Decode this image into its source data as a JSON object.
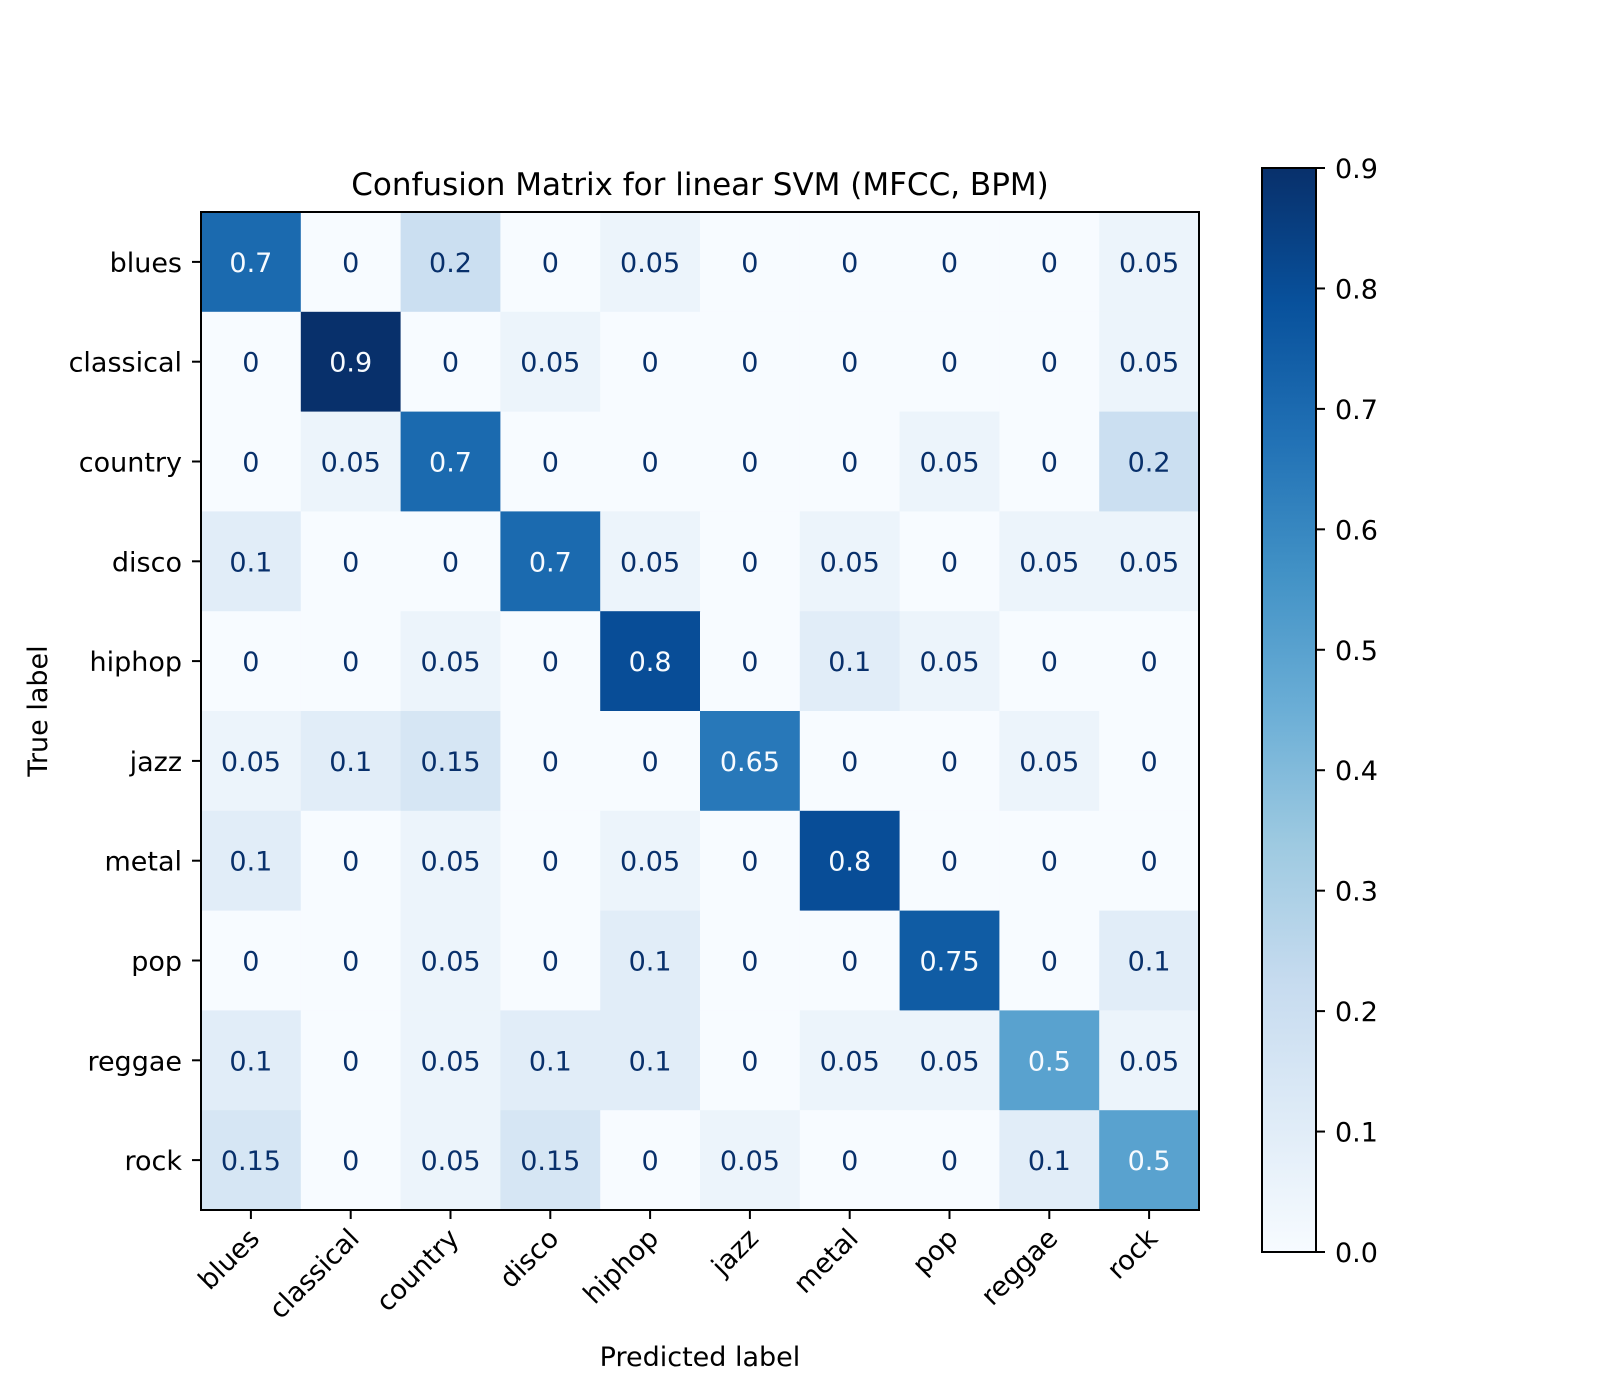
{
  "chart_data": {
    "type": "heatmap",
    "title": "Confusion Matrix for linear SVM (MFCC, BPM)",
    "xlabel": "Predicted label",
    "ylabel": "True label",
    "x_categories": [
      "blues",
      "classical",
      "country",
      "disco",
      "hiphop",
      "jazz",
      "metal",
      "pop",
      "reggae",
      "rock"
    ],
    "y_categories": [
      "blues",
      "classical",
      "country",
      "disco",
      "hiphop",
      "jazz",
      "metal",
      "pop",
      "reggae",
      "rock"
    ],
    "values": [
      [
        0.7,
        0,
        0.2,
        0,
        0.05,
        0,
        0,
        0,
        0,
        0.05
      ],
      [
        0,
        0.9,
        0,
        0.05,
        0,
        0,
        0,
        0,
        0,
        0.05
      ],
      [
        0,
        0.05,
        0.7,
        0,
        0,
        0,
        0,
        0.05,
        0,
        0.2
      ],
      [
        0.1,
        0,
        0,
        0.7,
        0.05,
        0,
        0.05,
        0,
        0.05,
        0.05
      ],
      [
        0,
        0,
        0.05,
        0,
        0.8,
        0,
        0.1,
        0.05,
        0,
        0
      ],
      [
        0.05,
        0.1,
        0.15,
        0,
        0,
        0.65,
        0,
        0,
        0.05,
        0
      ],
      [
        0.1,
        0,
        0.05,
        0,
        0.05,
        0,
        0.8,
        0,
        0,
        0
      ],
      [
        0,
        0,
        0.05,
        0,
        0.1,
        0,
        0,
        0.75,
        0,
        0.1
      ],
      [
        0.1,
        0,
        0.05,
        0.1,
        0.1,
        0,
        0.05,
        0.05,
        0.5,
        0.05
      ],
      [
        0.15,
        0,
        0.05,
        0.15,
        0,
        0.05,
        0,
        0,
        0.1,
        0.5
      ]
    ],
    "colorbar": {
      "range": [
        0.0,
        0.9
      ],
      "ticks": [
        "0.0",
        "0.1",
        "0.2",
        "0.3",
        "0.4",
        "0.5",
        "0.6",
        "0.7",
        "0.8",
        "0.9"
      ]
    },
    "colormap": "Blues",
    "text_colors": {
      "dark": "#08306b",
      "light": "#f7fbff"
    }
  }
}
